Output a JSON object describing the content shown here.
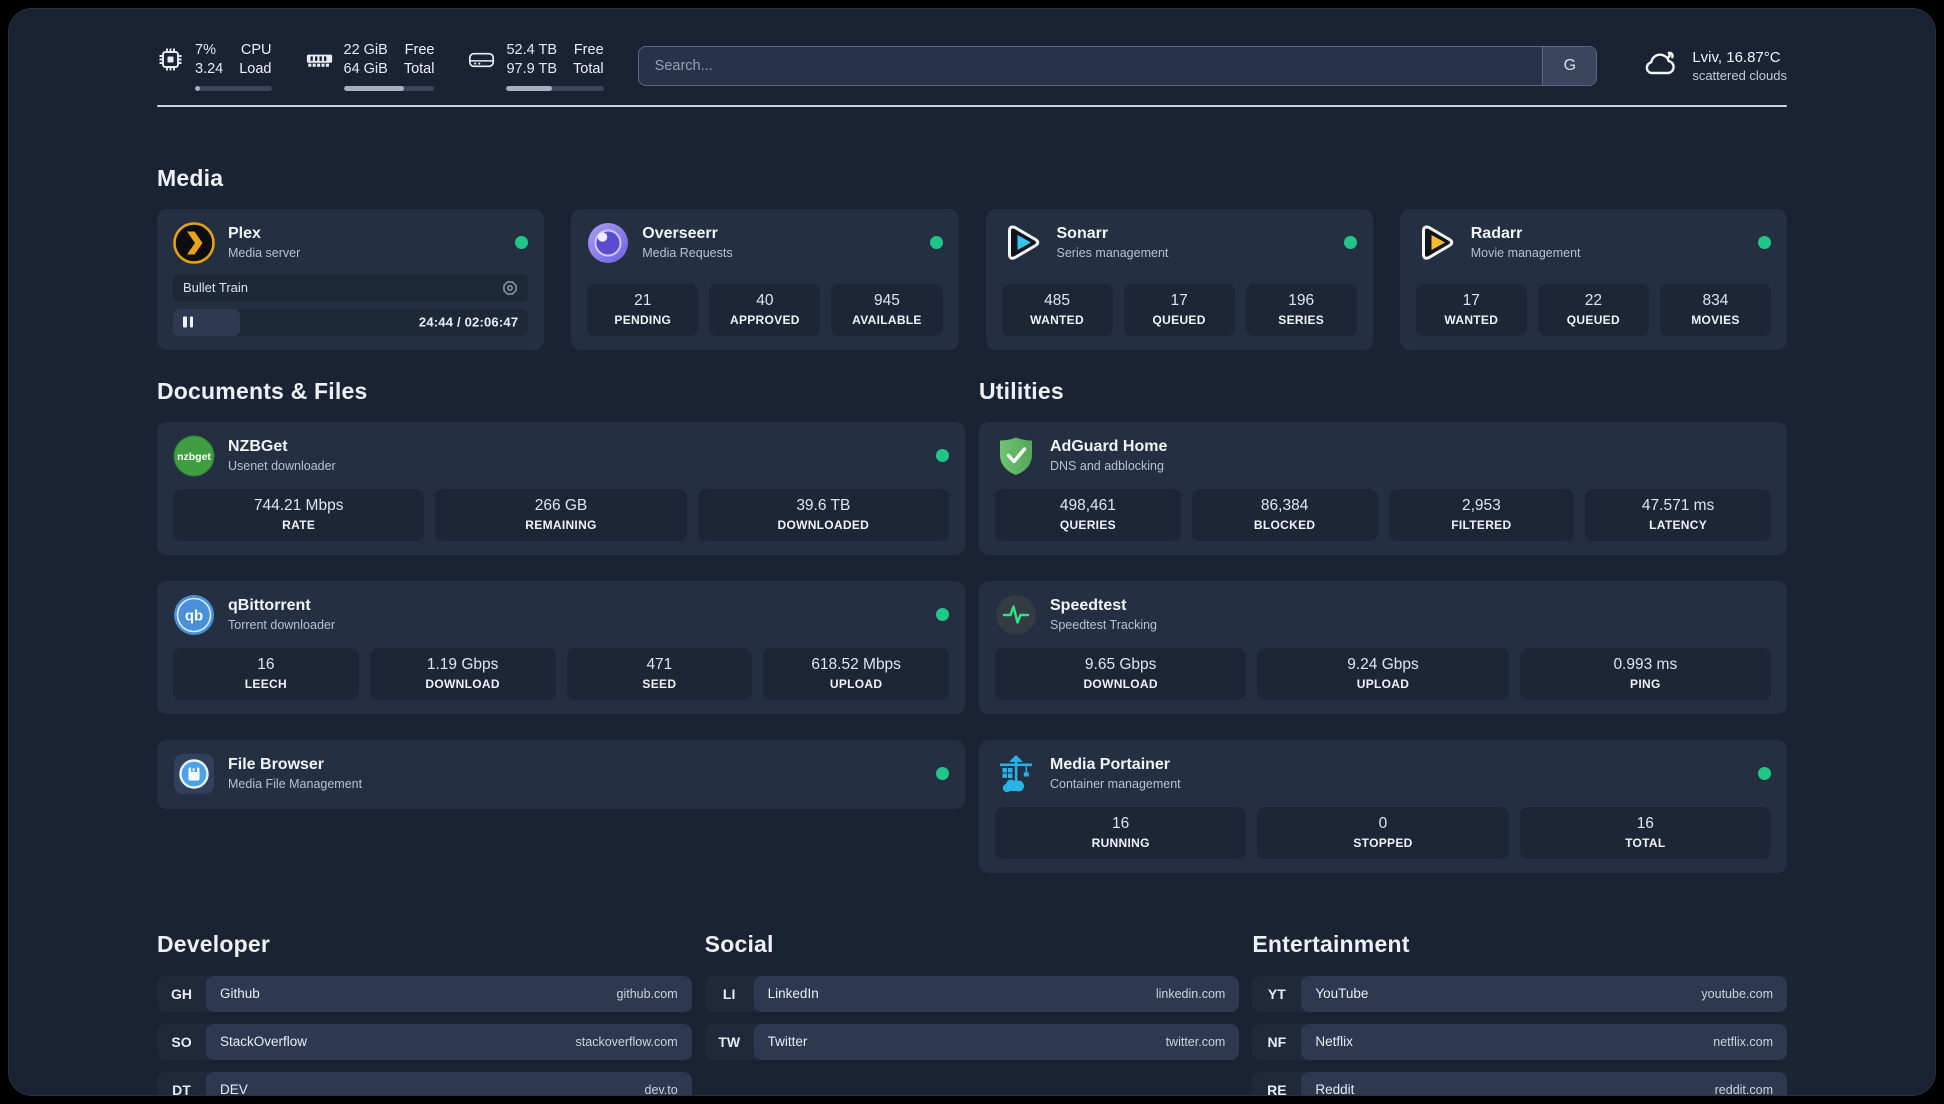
{
  "header": {
    "metrics": [
      {
        "icon": "cpu-icon",
        "values": [
          "7%",
          "3.24"
        ],
        "labels": [
          "CPU",
          "Load"
        ],
        "progress": 7
      },
      {
        "icon": "ram-icon",
        "values": [
          "22 GiB",
          "64 GiB"
        ],
        "labels": [
          "Free",
          "Total"
        ],
        "progress": 66
      },
      {
        "icon": "disk-icon",
        "values": [
          "52.4 TB",
          "97.9 TB"
        ],
        "labels": [
          "Free",
          "Total"
        ],
        "progress": 47
      }
    ],
    "search": {
      "placeholder": "Search...",
      "provider": "G"
    },
    "weather": {
      "icon": "cloud-icon",
      "line1": "Lviv, 16.87°C",
      "line2": "scattered clouds"
    }
  },
  "sections": {
    "media": {
      "title": "Media",
      "cards": [
        {
          "name": "Plex",
          "desc": "Media server",
          "icon": "plex-icon",
          "online": true,
          "player": {
            "track": "Bullet Train",
            "time": "24:44 / 02:06:47",
            "progress": 19
          }
        },
        {
          "name": "Overseerr",
          "desc": "Media Requests",
          "icon": "overseerr-icon",
          "online": true,
          "stats": [
            {
              "value": "21",
              "label": "PENDING"
            },
            {
              "value": "40",
              "label": "APPROVED"
            },
            {
              "value": "945",
              "label": "AVAILABLE"
            }
          ]
        },
        {
          "name": "Sonarr",
          "desc": "Series management",
          "icon": "sonarr-icon",
          "online": true,
          "stats": [
            {
              "value": "485",
              "label": "WANTED"
            },
            {
              "value": "17",
              "label": "QUEUED"
            },
            {
              "value": "196",
              "label": "SERIES"
            }
          ]
        },
        {
          "name": "Radarr",
          "desc": "Movie management",
          "icon": "radarr-icon",
          "online": true,
          "stats": [
            {
              "value": "17",
              "label": "WANTED"
            },
            {
              "value": "22",
              "label": "QUEUED"
            },
            {
              "value": "834",
              "label": "MOVIES"
            }
          ]
        }
      ]
    },
    "documents": {
      "title": "Documents & Files",
      "cards": [
        {
          "name": "NZBGet",
          "desc": "Usenet downloader",
          "icon": "nzbget-icon",
          "online": true,
          "stats": [
            {
              "value": "744.21 Mbps",
              "label": "RATE"
            },
            {
              "value": "266 GB",
              "label": "REMAINING"
            },
            {
              "value": "39.6 TB",
              "label": "DOWNLOADED"
            }
          ]
        },
        {
          "name": "qBittorrent",
          "desc": "Torrent downloader",
          "icon": "qbittorrent-icon",
          "online": true,
          "stats": [
            {
              "value": "16",
              "label": "LEECH"
            },
            {
              "value": "1.19 Gbps",
              "label": "DOWNLOAD"
            },
            {
              "value": "471",
              "label": "SEED"
            },
            {
              "value": "618.52 Mbps",
              "label": "UPLOAD"
            }
          ]
        },
        {
          "name": "File Browser",
          "desc": "Media File Management",
          "icon": "filebrowser-icon",
          "online": true
        }
      ]
    },
    "utilities": {
      "title": "Utilities",
      "cards": [
        {
          "name": "AdGuard Home",
          "desc": "DNS and adblocking",
          "icon": "adguard-icon",
          "online": false,
          "stats": [
            {
              "value": "498,461",
              "label": "QUERIES"
            },
            {
              "value": "86,384",
              "label": "BLOCKED"
            },
            {
              "value": "2,953",
              "label": "FILTERED"
            },
            {
              "value": "47.571 ms",
              "label": "LATENCY"
            }
          ]
        },
        {
          "name": "Speedtest",
          "desc": "Speedtest Tracking",
          "icon": "speedtest-icon",
          "online": false,
          "stats": [
            {
              "value": "9.65 Gbps",
              "label": "DOWNLOAD"
            },
            {
              "value": "9.24 Gbps",
              "label": "UPLOAD"
            },
            {
              "value": "0.993 ms",
              "label": "PING"
            }
          ]
        },
        {
          "name": "Media Portainer",
          "desc": "Container management",
          "icon": "portainer-icon",
          "online": true,
          "stats": [
            {
              "value": "16",
              "label": "RUNNING"
            },
            {
              "value": "0",
              "label": "STOPPED"
            },
            {
              "value": "16",
              "label": "TOTAL"
            }
          ]
        }
      ]
    },
    "bookmarks": [
      {
        "title": "Developer",
        "links": [
          {
            "tag": "GH",
            "name": "Github",
            "domain": "github.com"
          },
          {
            "tag": "SO",
            "name": "StackOverflow",
            "domain": "stackoverflow.com"
          },
          {
            "tag": "DT",
            "name": "DEV",
            "domain": "dev.to"
          }
        ]
      },
      {
        "title": "Social",
        "links": [
          {
            "tag": "LI",
            "name": "LinkedIn",
            "domain": "linkedin.com"
          },
          {
            "tag": "TW",
            "name": "Twitter",
            "domain": "twitter.com"
          }
        ]
      },
      {
        "title": "Entertainment",
        "links": [
          {
            "tag": "YT",
            "name": "YouTube",
            "domain": "youtube.com"
          },
          {
            "tag": "NF",
            "name": "Netflix",
            "domain": "netflix.com"
          },
          {
            "tag": "RE",
            "name": "Reddit",
            "domain": "reddit.com"
          }
        ]
      }
    ]
  },
  "colors": {
    "background": "#1a2333",
    "card": "#242f42",
    "tile": "#1c2636",
    "status_online": "#1fc687",
    "plex_amber": "#e5a00d",
    "sonarr_blue": "#35c5f4",
    "radarr_amber": "#ffb020"
  }
}
